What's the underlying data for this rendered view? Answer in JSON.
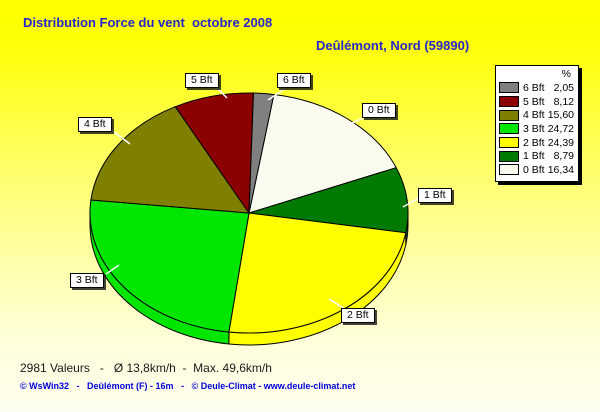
{
  "title": "Distribution Force du vent  octobre 2008",
  "subtitle": "Deûlémont, Nord (59890)",
  "stats_line": "2981 Valeurs   -   Ø 13,8km/h  -  Max. 49,6km/h",
  "footer": {
    "text": "© WsWin32   -   Deûlémont (F) - 16m   -   © Deule-Climat - www.deule-climat.net"
  },
  "colors": {
    "title_blue": "#2626cd",
    "footer_blue": "#0000dd",
    "background_top": "#ffff00",
    "background_bottom": "#fdfdf0",
    "bft0": "#fbfaef",
    "bft1": "#007a00",
    "bft2": "#ffff00",
    "bft3": "#00e600",
    "bft4": "#808000",
    "bft5": "#8b0000",
    "bft6": "#808080"
  },
  "legend": {
    "header": "%",
    "items": [
      {
        "label": "6 Bft",
        "value": "2,05",
        "color": "#808080"
      },
      {
        "label": "5 Bft",
        "value": "8,12",
        "color": "#8b0000"
      },
      {
        "label": "4 Bft",
        "value": "15,60",
        "color": "#808000"
      },
      {
        "label": "3 Bft",
        "value": "24,72",
        "color": "#00e600"
      },
      {
        "label": "2 Bft",
        "value": "24,39",
        "color": "#ffff00"
      },
      {
        "label": "1 Bft",
        "value": "8,79",
        "color": "#007a00"
      },
      {
        "label": "0 Bft",
        "value": "16,34",
        "color": "#fbfaef"
      }
    ]
  },
  "chart_data": {
    "type": "pie",
    "style": "3d-exploded-none",
    "title": "Distribution Force du vent octobre 2008",
    "subtitle": "Deûlémont, Nord (59890)",
    "unit": "%",
    "start_angle_deg": 9,
    "clockwise_from_top": true,
    "slices": [
      {
        "label": "0 Bft",
        "value": 16.34,
        "color": "#fbfaef"
      },
      {
        "label": "1 Bft",
        "value": 8.79,
        "color": "#007a00"
      },
      {
        "label": "2 Bft",
        "value": 24.39,
        "color": "#ffff00"
      },
      {
        "label": "3 Bft",
        "value": 24.72,
        "color": "#00e600"
      },
      {
        "label": "4 Bft",
        "value": 15.6,
        "color": "#808000"
      },
      {
        "label": "5 Bft",
        "value": 8.12,
        "color": "#8b0000"
      },
      {
        "label": "6 Bft",
        "value": 2.05,
        "color": "#808080"
      }
    ],
    "n_values": 2981,
    "avg_kmh": 13.8,
    "max_kmh": 49.6,
    "legend_position": "top-right"
  }
}
